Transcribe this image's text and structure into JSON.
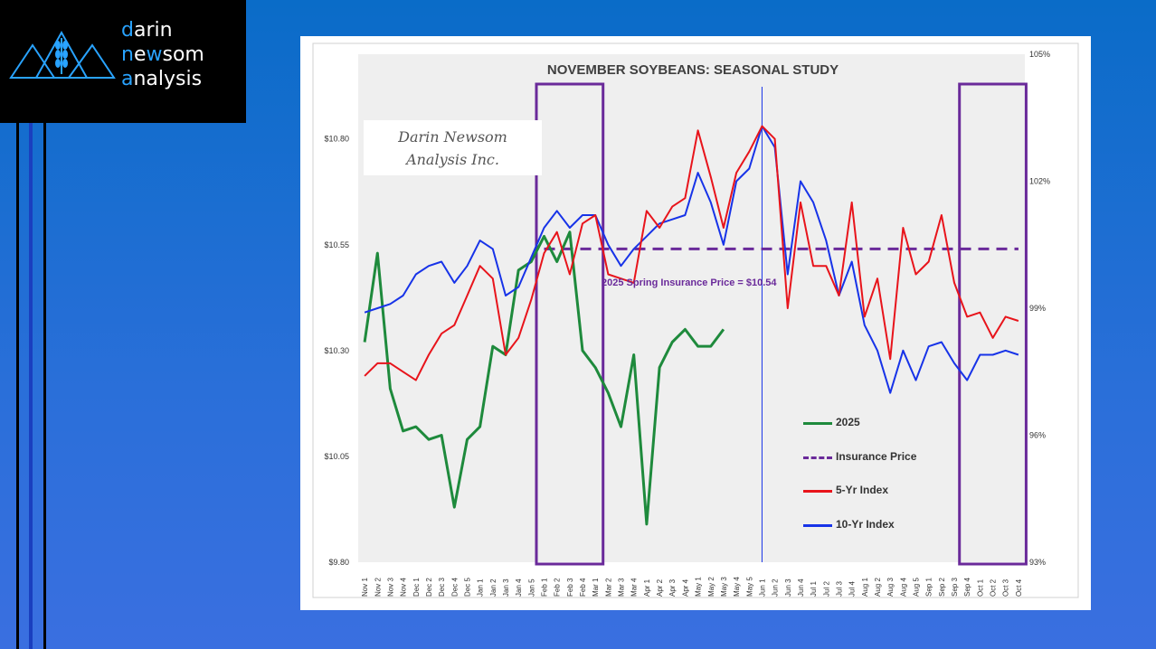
{
  "logo": {
    "line1_first": "d",
    "line1_rest": "arin",
    "line2_first": "n",
    "line2_mid": "e",
    "line2_acc": "w",
    "line2_rest": "som",
    "line3_first": "a",
    "line3_rest": "nalysis"
  },
  "watermark": {
    "line1": "Darin Newsom",
    "line2": "Analysis Inc."
  },
  "colors": {
    "series_2025": "#1e8a3c",
    "insurance": "#6a2a9a",
    "index5": "#e8141b",
    "index10": "#1733e8",
    "box": "#6a2a9a",
    "plot_bg": "#efefef"
  },
  "chart_data": {
    "type": "line",
    "title": "NOVEMBER SOYBEANS: SEASONAL STUDY",
    "annotation": "2025 Spring Insurance Price = $10.54",
    "x": [
      "Nov 1",
      "Nov 2",
      "Nov 3",
      "Nov 4",
      "Dec 1",
      "Dec 2",
      "Dec 3",
      "Dec 4",
      "Dec 5",
      "Jan 1",
      "Jan 2",
      "Jan 3",
      "Jan 4",
      "Jan 5",
      "Feb 1",
      "Feb 2",
      "Feb 3",
      "Feb 4",
      "Mar 1",
      "Mar 2",
      "Mar 3",
      "Mar 4",
      "Apr 1",
      "Apr 2",
      "Apr 3",
      "Apr 4",
      "May 1",
      "May 2",
      "May 3",
      "May 4",
      "May 5",
      "Jun 1",
      "Jun 2",
      "Jun 3",
      "Jun 4",
      "Jul 1",
      "Jul 2",
      "Jul 3",
      "Jul 4",
      "Aug 1",
      "Aug 2",
      "Aug 3",
      "Aug 4",
      "Aug 5",
      "Sep 1",
      "Sep 2",
      "Sep 3",
      "Sep 4",
      "Oct 1",
      "Oct 2",
      "Oct 3",
      "Oct 4"
    ],
    "y_left": {
      "ticks": [
        "$10.80",
        "$10.55",
        "$10.30",
        "$10.05",
        "$9.80"
      ],
      "ylim": [
        9.8,
        11.0
      ]
    },
    "y_right": {
      "ticks": [
        "105%",
        "102%",
        "99%",
        "96%",
        "93%"
      ],
      "ylim": [
        93,
        105
      ]
    },
    "series": [
      {
        "name": "2025",
        "axis": "left",
        "values": [
          10.32,
          10.53,
          10.21,
          10.11,
          10.12,
          10.09,
          10.1,
          9.93,
          10.09,
          10.12,
          10.31,
          10.29,
          10.49,
          10.51,
          10.57,
          10.51,
          10.58,
          10.3,
          10.26,
          10.2,
          10.12,
          10.29,
          9.89,
          10.26,
          10.32,
          10.35,
          10.31,
          10.31,
          10.35,
          null,
          null,
          null,
          null,
          null,
          null,
          null,
          null,
          null,
          null,
          null,
          null,
          null,
          null,
          null,
          null,
          null,
          null,
          null,
          null,
          null,
          null,
          null
        ]
      },
      {
        "name": "Insurance Price",
        "axis": "left",
        "constant": 10.54,
        "from": "Feb 1",
        "to": "Oct 4"
      },
      {
        "name": "5-Yr Index",
        "axis": "right",
        "values": [
          97.4,
          97.7,
          97.7,
          97.5,
          97.3,
          97.9,
          98.4,
          98.6,
          99.3,
          100.0,
          99.7,
          97.9,
          98.3,
          99.2,
          100.3,
          100.8,
          99.8,
          101.0,
          101.2,
          99.8,
          99.7,
          99.6,
          101.3,
          100.9,
          101.4,
          101.6,
          103.2,
          102.1,
          100.9,
          102.2,
          102.7,
          103.3,
          103.0,
          99.0,
          101.5,
          100.0,
          100.0,
          99.3,
          101.5,
          98.8,
          99.7,
          97.8,
          100.9,
          99.8,
          100.1,
          101.2,
          99.6,
          98.8,
          98.9,
          98.3,
          98.8,
          98.7
        ]
      },
      {
        "name": "10-Yr Index",
        "axis": "right",
        "values": [
          98.9,
          99.0,
          99.1,
          99.3,
          99.8,
          100.0,
          100.1,
          99.6,
          100.0,
          100.6,
          100.4,
          99.3,
          99.5,
          100.2,
          100.9,
          101.3,
          100.9,
          101.2,
          101.2,
          100.5,
          100.0,
          100.4,
          100.7,
          101.0,
          101.1,
          101.2,
          102.2,
          101.5,
          100.5,
          102.0,
          102.3,
          103.3,
          102.8,
          99.8,
          102.0,
          101.5,
          100.6,
          99.3,
          100.1,
          98.6,
          98.0,
          97.0,
          98.0,
          97.3,
          98.1,
          98.2,
          97.7,
          97.3,
          97.9,
          97.9,
          98.0,
          97.9
        ]
      }
    ],
    "legend": [
      "2025",
      "Insurance Price",
      "5-Yr Index",
      "10-Yr Index"
    ],
    "highlight_boxes": [
      {
        "from": "Feb 1",
        "to": "Mar 1"
      },
      {
        "from": "Sep 4",
        "to": "Oct 4"
      }
    ],
    "vertical_marker": "Jun 1",
    "grid": false
  }
}
